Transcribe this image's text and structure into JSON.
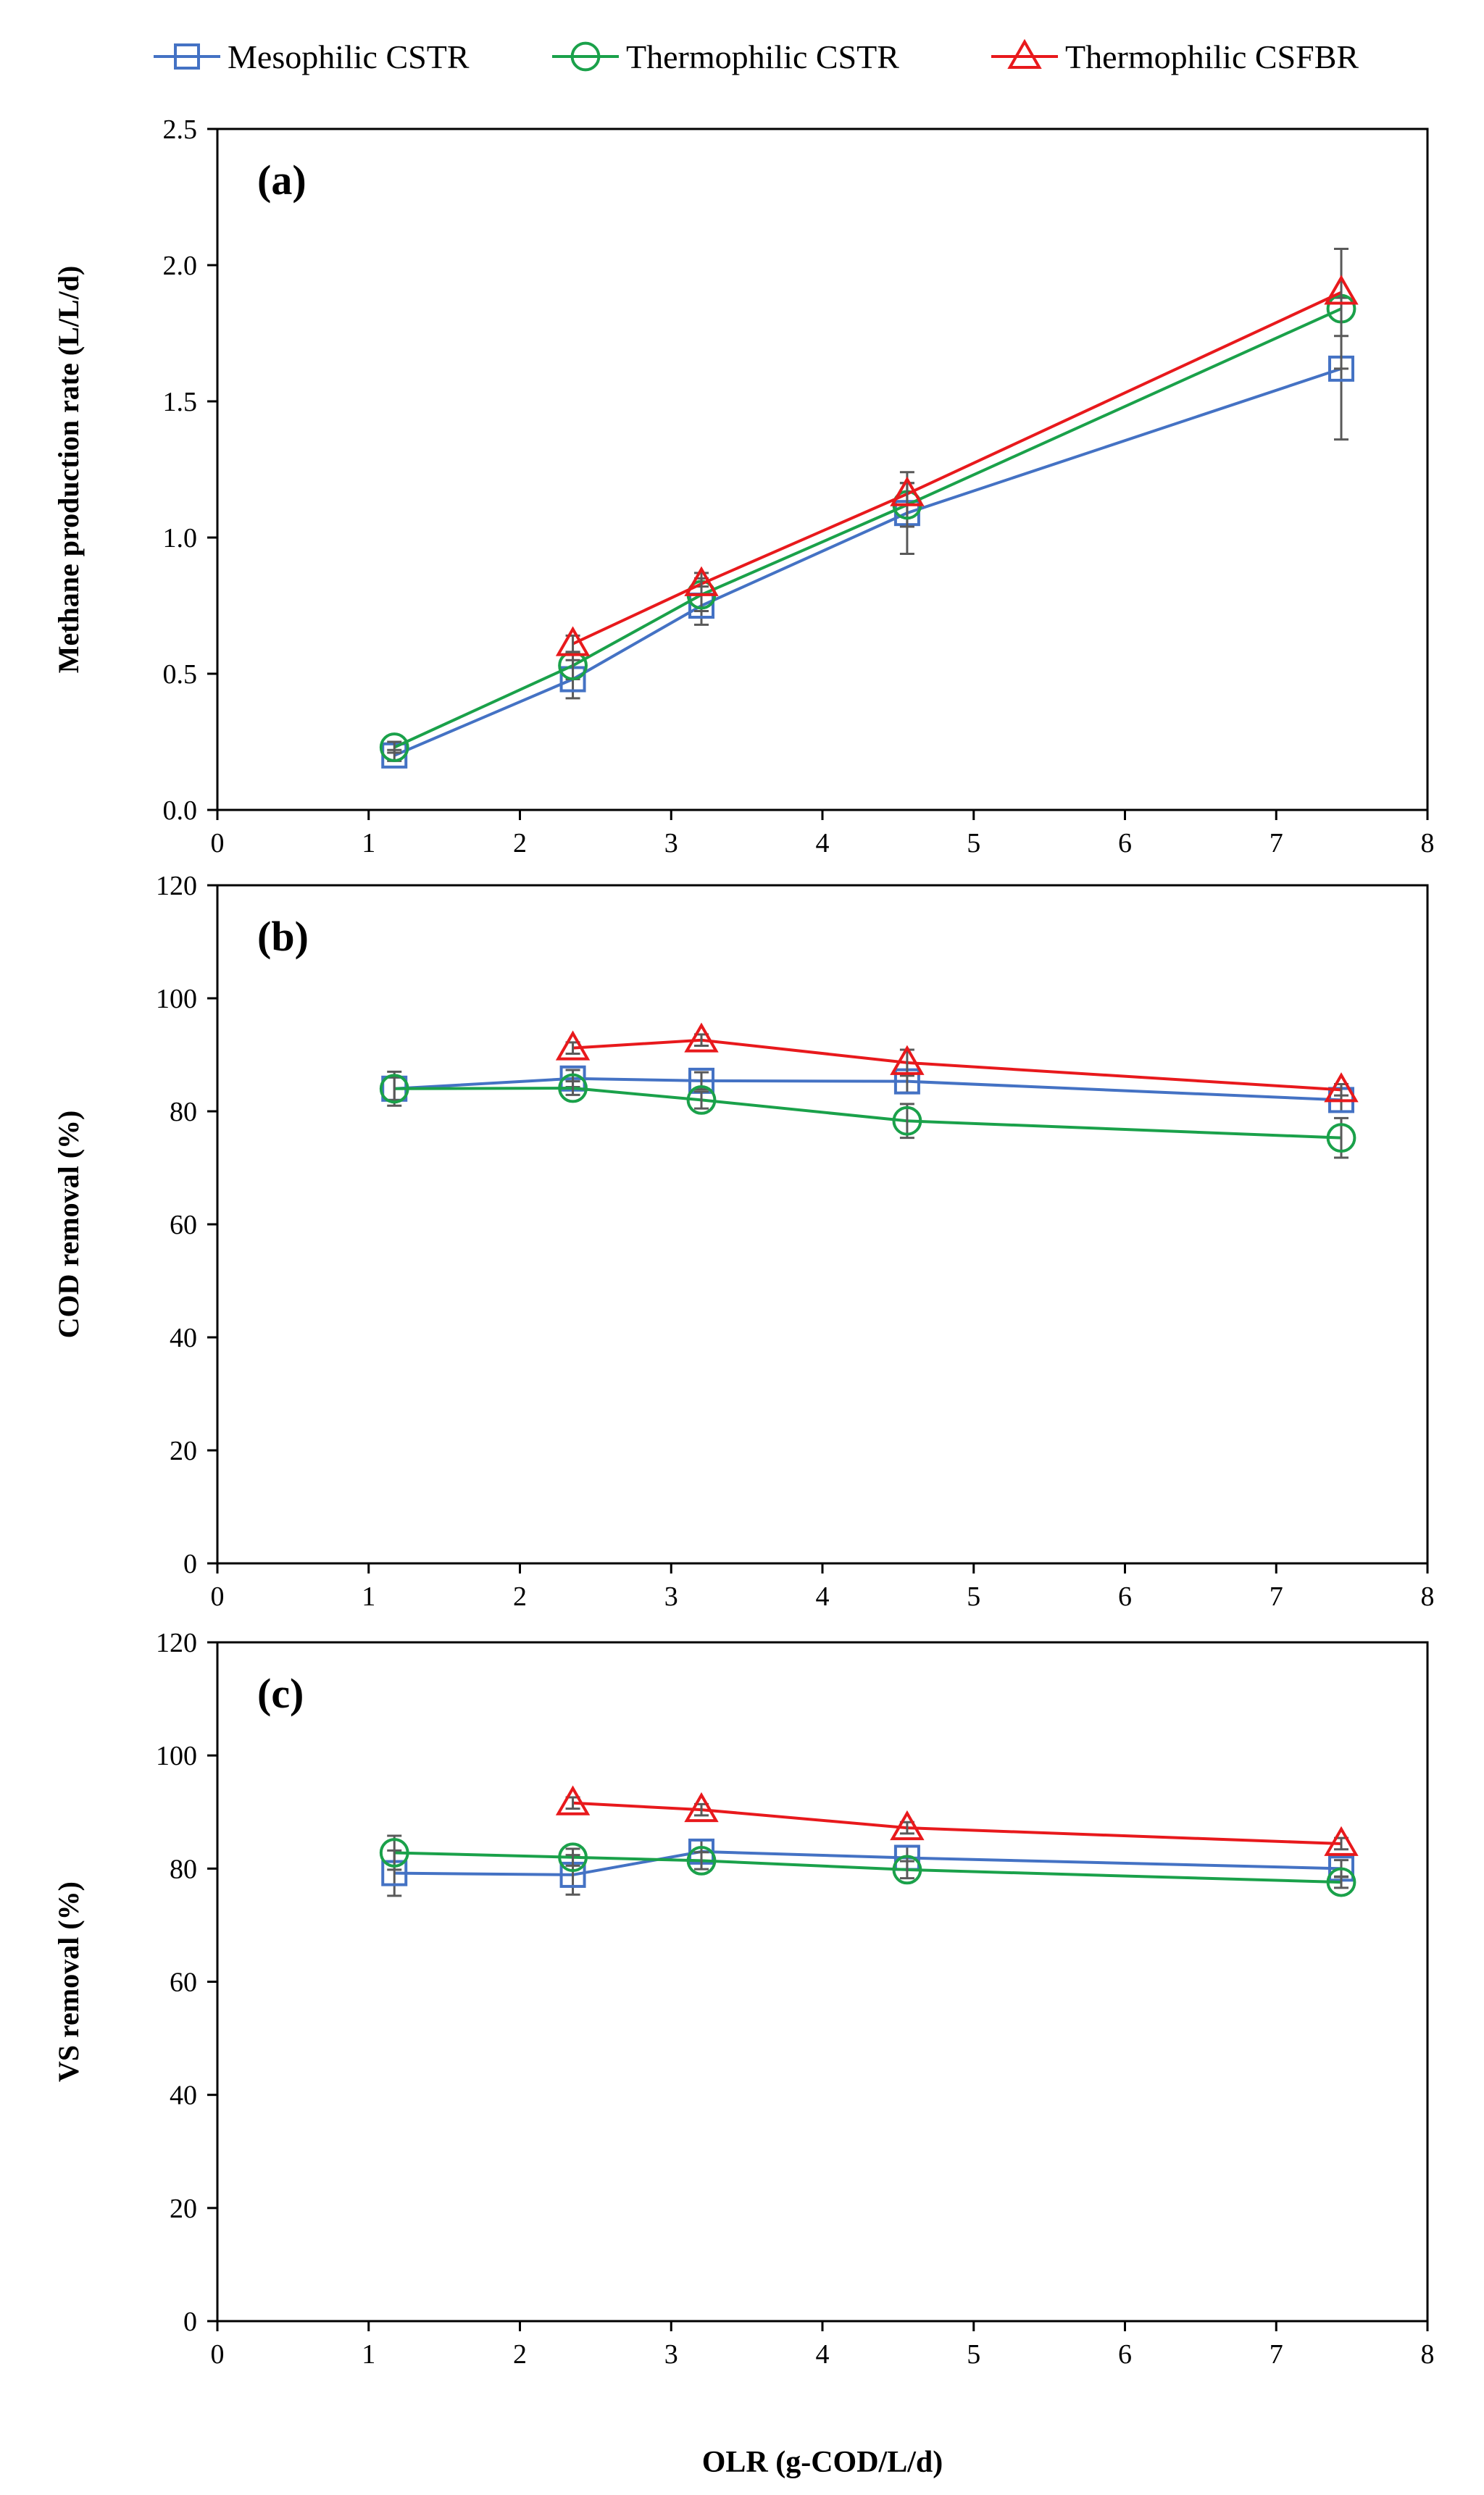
{
  "legend": [
    {
      "name": "Mesophilic CSTR",
      "color": "#4472C4",
      "marker": "square"
    },
    {
      "name": "Thermophilic CSTR",
      "color": "#1AA14A",
      "marker": "circle"
    },
    {
      "name": "Thermophilic CSFBR",
      "color": "#E8191C",
      "marker": "triangle"
    }
  ],
  "xlabel": "OLR (g-COD/L/d)",
  "chart_data": [
    {
      "type": "line",
      "panel_label": "(a)",
      "ylabel": "Methane production rate (L/L/d)",
      "xlim": [
        0,
        8
      ],
      "ylim": [
        0,
        2.5
      ],
      "xticks": [
        "0",
        "1",
        "2",
        "3",
        "4",
        "5",
        "6",
        "7",
        "8"
      ],
      "yticks": [
        "0.0",
        "0.5",
        "1.0",
        "1.5",
        "2.0",
        "2.5"
      ],
      "series": [
        {
          "name": "Mesophilic CSTR",
          "x": [
            1.17,
            2.35,
            3.2,
            4.56,
            7.43
          ],
          "y": [
            0.2,
            0.48,
            0.75,
            1.09,
            1.62
          ],
          "err": [
            0.02,
            0.07,
            0.07,
            0.15,
            0.26
          ]
        },
        {
          "name": "Thermophilic CSTR",
          "x": [
            1.17,
            2.35,
            3.2,
            4.56,
            7.43
          ],
          "y": [
            0.23,
            0.53,
            0.79,
            1.12,
            1.84
          ],
          "err": [
            0.02,
            0.05,
            0.06,
            0.08,
            0.22
          ]
        },
        {
          "name": "Thermophilic CSFBR",
          "x": [
            2.35,
            3.2,
            4.56,
            7.43
          ],
          "y": [
            0.61,
            0.83,
            1.16,
            1.9
          ],
          "err": [
            0.03,
            0.04,
            0.04,
            0.16
          ]
        }
      ]
    },
    {
      "type": "line",
      "panel_label": "(b)",
      "ylabel": "COD removal (%)",
      "xlim": [
        0,
        8
      ],
      "ylim": [
        0,
        120
      ],
      "xticks": [
        "0",
        "1",
        "2",
        "3",
        "4",
        "5",
        "6",
        "7",
        "8"
      ],
      "yticks": [
        "0",
        "20",
        "40",
        "60",
        "80",
        "100",
        "120"
      ],
      "series": [
        {
          "name": "Mesophilic CSTR",
          "x": [
            1.17,
            2.35,
            3.2,
            4.56,
            7.43
          ],
          "y": [
            84,
            85.8,
            85.4,
            85.3,
            82
          ],
          "err": [
            3,
            1.5,
            1.5,
            2,
            2
          ]
        },
        {
          "name": "Thermophilic CSTR",
          "x": [
            1.17,
            2.35,
            3.2,
            4.56,
            7.43
          ],
          "y": [
            84,
            84.1,
            82,
            78.3,
            75.3
          ],
          "err": [
            2,
            1.2,
            1.5,
            3,
            3.5
          ]
        },
        {
          "name": "Thermophilic CSFBR",
          "x": [
            2.35,
            3.2,
            4.56,
            7.43
          ],
          "y": [
            91.2,
            92.6,
            88.6,
            83.8
          ],
          "err": [
            1,
            1,
            2.3,
            1
          ]
        }
      ]
    },
    {
      "type": "line",
      "panel_label": "(c)",
      "ylabel": "VS removal (%)",
      "xlim": [
        0,
        8
      ],
      "ylim": [
        0,
        120
      ],
      "xticks": [
        "0",
        "1",
        "2",
        "3",
        "4",
        "5",
        "6",
        "7",
        "8"
      ],
      "yticks": [
        "0",
        "20",
        "40",
        "60",
        "80",
        "100",
        "120"
      ],
      "series": [
        {
          "name": "Mesophilic CSTR",
          "x": [
            1.17,
            2.35,
            3.2,
            4.56,
            7.43
          ],
          "y": [
            79.2,
            78.9,
            83,
            81.9,
            80
          ],
          "err": [
            4,
            3.5,
            2,
            2,
            1.5
          ]
        },
        {
          "name": "Thermophilic CSTR",
          "x": [
            1.17,
            2.35,
            3.2,
            4.56,
            7.43
          ],
          "y": [
            82.8,
            82,
            81.4,
            79.8,
            77.6
          ],
          "err": [
            3,
            1.5,
            1.5,
            1.5,
            1
          ]
        },
        {
          "name": "Thermophilic CSFBR",
          "x": [
            2.35,
            3.2,
            4.56,
            7.43
          ],
          "y": [
            91.6,
            90.4,
            87.2,
            84.4
          ],
          "err": [
            1,
            1,
            1,
            1
          ]
        }
      ]
    }
  ]
}
